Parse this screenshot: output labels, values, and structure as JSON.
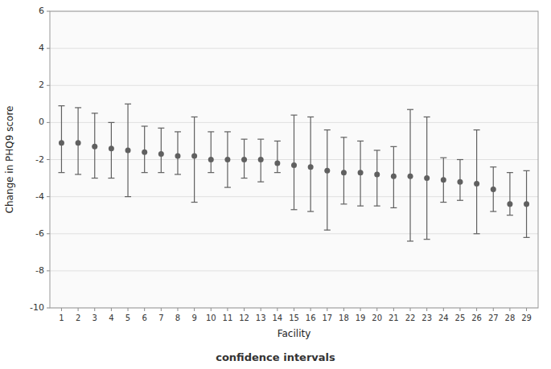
{
  "chart_data": {
    "type": "errorbar",
    "xlabel": "Facility",
    "ylabel": "Change in PHQ9 score",
    "annotation": "confidence intervals",
    "x": [
      1,
      2,
      3,
      4,
      5,
      6,
      7,
      8,
      9,
      10,
      11,
      12,
      13,
      14,
      15,
      16,
      17,
      18,
      19,
      20,
      21,
      22,
      23,
      24,
      25,
      26,
      27,
      28,
      29
    ],
    "values": [
      -1.1,
      -1.1,
      -1.3,
      -1.4,
      -1.5,
      -1.6,
      -1.7,
      -1.8,
      -1.8,
      -2.0,
      -2.0,
      -2.0,
      -2.0,
      -2.2,
      -2.3,
      -2.4,
      -2.6,
      -2.7,
      -2.7,
      -2.8,
      -2.9,
      -2.9,
      -3.0,
      -3.1,
      -3.2,
      -3.3,
      -3.6,
      -4.4,
      -4.4
    ],
    "lower": [
      -2.7,
      -2.8,
      -3.0,
      -3.0,
      -4.0,
      -2.7,
      -2.7,
      -2.8,
      -4.3,
      -2.7,
      -3.5,
      -3.0,
      -3.2,
      -2.7,
      -4.7,
      -4.8,
      -5.8,
      -4.4,
      -4.5,
      -4.5,
      -4.6,
      -6.4,
      -6.3,
      -4.3,
      -4.2,
      -6.0,
      -4.8,
      -5.0,
      -6.2
    ],
    "upper": [
      0.9,
      0.8,
      0.5,
      0.0,
      1.0,
      -0.2,
      -0.3,
      -0.5,
      0.3,
      -0.5,
      -0.5,
      -0.9,
      -0.9,
      -1.0,
      0.4,
      0.3,
      -0.4,
      -0.8,
      -1.0,
      -1.5,
      -1.3,
      0.7,
      0.3,
      -1.9,
      -2.0,
      -0.4,
      -2.4,
      -2.7,
      -2.6
    ],
    "xlim": [
      0.3,
      29.7
    ],
    "xticks": [
      1,
      2,
      3,
      4,
      5,
      6,
      7,
      8,
      9,
      10,
      11,
      12,
      13,
      14,
      15,
      16,
      17,
      18,
      19,
      20,
      21,
      22,
      23,
      24,
      25,
      26,
      27,
      28,
      29
    ],
    "ylim": [
      -10,
      6
    ],
    "yticks": [
      -10,
      -8,
      -6,
      -4,
      -2,
      0,
      2,
      4,
      6
    ],
    "grid": true,
    "marker": "circle",
    "color": "#606060"
  }
}
